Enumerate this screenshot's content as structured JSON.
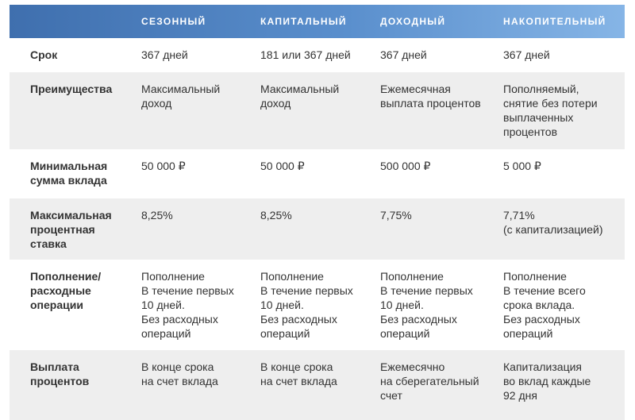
{
  "columns": [
    "СЕЗОННЫЙ",
    "КАПИТАЛЬНЫЙ",
    "ДОХОДНЫЙ",
    "НАКОПИТЕЛЬНЫЙ"
  ],
  "rows": [
    {
      "label": "Срок",
      "values": [
        "367 дней",
        "181 или 367 дней",
        "367 дней",
        "367 дней"
      ]
    },
    {
      "label": "Преимущества",
      "values": [
        "Максимальный\nдоход",
        "Максимальный\nдоход",
        "Ежемесячная\nвыплата процентов",
        "Пополняемый,\nснятие без потери\nвыплаченных\nпроцентов"
      ]
    },
    {
      "label": "Минимальная\nсумма вклада",
      "values": [
        "50 000 ₽",
        "50 000 ₽",
        "500 000 ₽",
        "5 000 ₽"
      ]
    },
    {
      "label": "Максимальная\nпроцентная\nставка",
      "values": [
        "8,25%",
        "8,25%",
        "7,75%",
        "7,71%\n(с капитализацией)"
      ]
    },
    {
      "label": "Пополнение/\nрасходные\nоперации",
      "values": [
        "Пополнение\nВ течение первых\n10 дней.\nБез расходных\nопераций",
        "Пополнение\nВ течение первых\n10 дней.\nБез расходных\nопераций",
        "Пополнение\nВ течение первых\n10 дней.\nБез расходных\nопераций",
        "Пополнение\nВ течение всего\nсрока вклада.\nБез расходных\nопераций"
      ]
    },
    {
      "label": "Выплата\nпроцентов",
      "values": [
        "В конце срока\nна счет вклада",
        "В конце срока\nна счет вклада",
        "Ежемесячно\nна сберегательный\nсчет",
        "Капитализация\nво вклад каждые\n92 дня"
      ]
    }
  ],
  "colors": {
    "header_gradient_start": "#3f6fae",
    "header_gradient_end": "#86b5e6",
    "alt_row": "#eeeeee",
    "text": "#333333"
  }
}
